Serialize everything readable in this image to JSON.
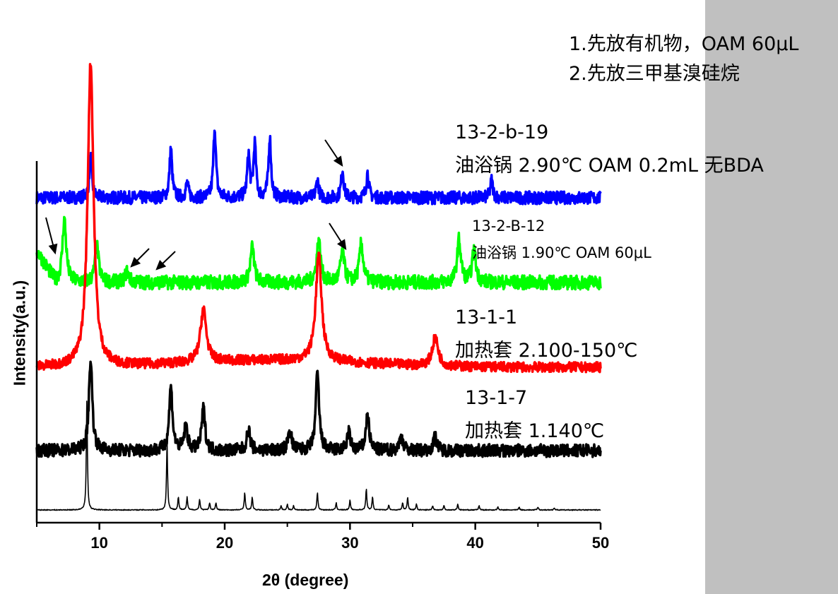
{
  "notes": {
    "line1": "1.先放有机物，OAM 60μL",
    "line2": "2.先放三甲基溴硅烷"
  },
  "labels": {
    "s1_name": "13-2-b-19",
    "s1_desc": "油浴锅 2.90℃  OAM 0.2mL 无BDA",
    "s2_name": "13-2-B-12",
    "s2_desc": "油浴锅 1.90℃  OAM 60μL",
    "s3_name": "13-1-1",
    "s3_desc": "加热套 2.100-150℃",
    "s4_name": "13-1-7",
    "s4_desc": "加热套 1.140℃"
  },
  "chart_data": {
    "type": "line",
    "xlabel": "2θ (degree)",
    "ylabel": "Intensity(a.u.)",
    "xlim": [
      5,
      50
    ],
    "xticks": [
      "10",
      "20",
      "30",
      "40",
      "50"
    ],
    "grid": false,
    "series": [
      {
        "name": "13-2-b-19",
        "color": "#0000ff",
        "peaks": [
          [
            9.3,
            58
          ],
          [
            15.7,
            70
          ],
          [
            17.0,
            20
          ],
          [
            19.2,
            100
          ],
          [
            21.9,
            60
          ],
          [
            22.4,
            75
          ],
          [
            23.6,
            85
          ],
          [
            27.4,
            25
          ],
          [
            29.4,
            40
          ],
          [
            31.4,
            35
          ],
          [
            41.3,
            25
          ]
        ]
      },
      {
        "name": "13-2-B-12",
        "color": "#00ff00",
        "peaks": [
          [
            7.2,
            90
          ],
          [
            9.8,
            50
          ],
          [
            12.2,
            15
          ],
          [
            22.2,
            50
          ],
          [
            27.5,
            60
          ],
          [
            29.4,
            45
          ],
          [
            30.9,
            55
          ],
          [
            38.7,
            60
          ],
          [
            39.9,
            45
          ]
        ]
      },
      {
        "name": "13-1-1",
        "color": "#ff0000",
        "peaks": [
          [
            9.3,
            430
          ],
          [
            18.3,
            75
          ],
          [
            27.5,
            150
          ],
          [
            36.8,
            40
          ]
        ]
      },
      {
        "name": "13-1-7",
        "color": "#000000",
        "peaks": [
          [
            9.3,
            130
          ],
          [
            15.7,
            90
          ],
          [
            16.9,
            35
          ],
          [
            18.3,
            60
          ],
          [
            21.9,
            30
          ],
          [
            25.2,
            30
          ],
          [
            27.4,
            110
          ],
          [
            29.9,
            25
          ],
          [
            31.4,
            50
          ],
          [
            34.1,
            20
          ],
          [
            36.8,
            20
          ]
        ]
      },
      {
        "name": "",
        "color": "#000000",
        "peaks": [
          [
            9.0,
            160
          ],
          [
            15.4,
            95
          ],
          [
            16.3,
            18
          ],
          [
            17.0,
            18
          ],
          [
            18.0,
            15
          ],
          [
            18.8,
            10
          ],
          [
            19.3,
            10
          ],
          [
            21.6,
            25
          ],
          [
            22.2,
            18
          ],
          [
            24.5,
            6
          ],
          [
            25.0,
            8
          ],
          [
            25.5,
            6
          ],
          [
            27.4,
            25
          ],
          [
            28.9,
            10
          ],
          [
            30.0,
            14
          ],
          [
            31.3,
            30
          ],
          [
            31.8,
            18
          ],
          [
            33.1,
            7
          ],
          [
            34.2,
            10
          ],
          [
            34.6,
            18
          ],
          [
            35.3,
            8
          ],
          [
            36.6,
            6
          ],
          [
            37.5,
            6
          ],
          [
            38.6,
            8
          ],
          [
            40.3,
            6
          ],
          [
            41.8,
            4
          ],
          [
            43.5,
            4
          ],
          [
            45.0,
            4
          ],
          [
            46.3,
            3
          ]
        ]
      }
    ],
    "annotations": [
      "arrow",
      "arrow",
      "arrow",
      "arrow",
      "arrow"
    ]
  }
}
